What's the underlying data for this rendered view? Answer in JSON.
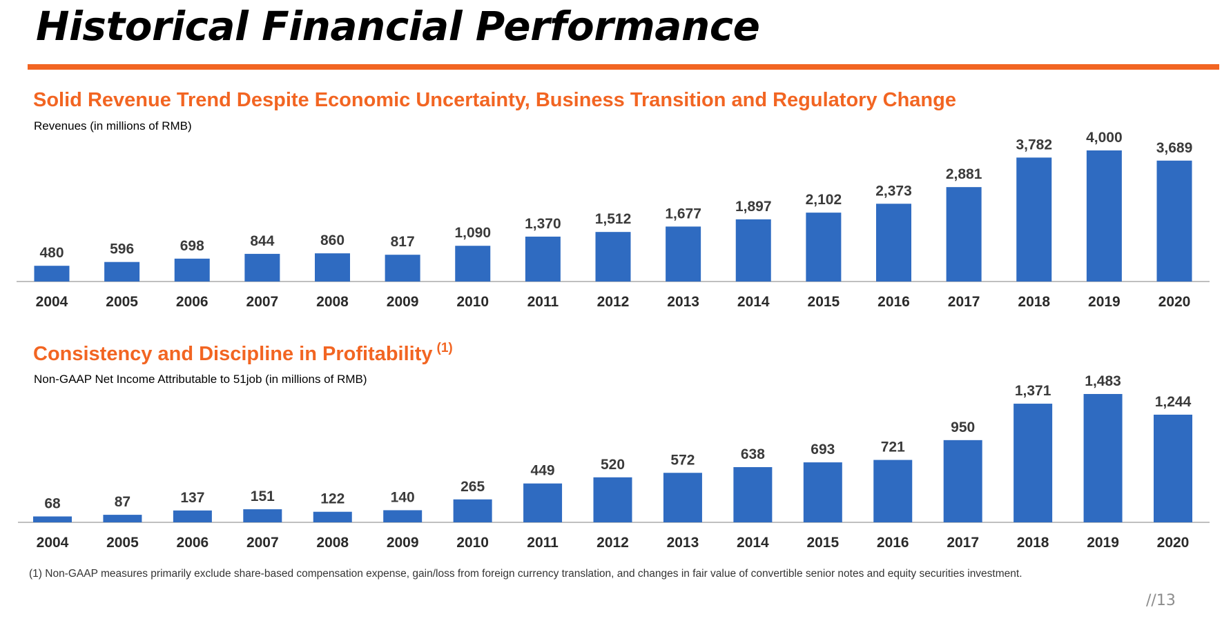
{
  "title": "Historical Financial Performance",
  "colors": {
    "accent": "#F26522",
    "bar": "#2F6BC1",
    "axis": "#bfbfbf"
  },
  "footnote": "(1)  Non-GAAP measures primarily exclude share-based compensation expense, gain/loss from foreign currency translation, and changes in fair value of convertible senior notes and equity securities investment.",
  "page_number": "//13",
  "charts": {
    "revenue": {
      "heading": "Solid Revenue Trend Despite Economic Uncertainty, Business Transition and Regulatory Change"
    },
    "net_income": {
      "heading": "Consistency and Discipline in Profitability",
      "heading_note": "(1)"
    }
  },
  "chart_data": [
    {
      "type": "bar",
      "title": "Solid Revenue Trend Despite Economic Uncertainty, Business Transition and Regulatory Change",
      "subtitle": "Revenues (in millions of RMB)",
      "xlabel": "",
      "ylabel": "",
      "categories": [
        "2004",
        "2005",
        "2006",
        "2007",
        "2008",
        "2009",
        "2010",
        "2011",
        "2012",
        "2013",
        "2014",
        "2015",
        "2016",
        "2017",
        "2018",
        "2019",
        "2020"
      ],
      "values": [
        480,
        596,
        698,
        844,
        860,
        817,
        1090,
        1370,
        1512,
        1677,
        1897,
        2102,
        2373,
        2881,
        3782,
        4000,
        3689
      ],
      "data_labels": [
        "480",
        "596",
        "698",
        "844",
        "860",
        "817",
        "1,090",
        "1,370",
        "1,512",
        "1,677",
        "1,897",
        "2,102",
        "2,373",
        "2,881",
        "3,782",
        "4,000",
        "3,689"
      ],
      "ylim": [
        0,
        4000
      ],
      "grid": false
    },
    {
      "type": "bar",
      "title": "Consistency and Discipline in Profitability",
      "subtitle": "Non-GAAP Net Income Attributable to 51job (in millions of RMB)",
      "xlabel": "",
      "ylabel": "",
      "categories": [
        "2004",
        "2005",
        "2006",
        "2007",
        "2008",
        "2009",
        "2010",
        "2011",
        "2012",
        "2013",
        "2014",
        "2015",
        "2016",
        "2017",
        "2018",
        "2019",
        "2020"
      ],
      "values": [
        68,
        87,
        137,
        151,
        122,
        140,
        265,
        449,
        520,
        572,
        638,
        693,
        721,
        950,
        1371,
        1483,
        1244
      ],
      "data_labels": [
        "68",
        "87",
        "137",
        "151",
        "122",
        "140",
        "265",
        "449",
        "520",
        "572",
        "638",
        "693",
        "721",
        "950",
        "1,371",
        "1,483",
        "1,244"
      ],
      "ylim": [
        0,
        1483
      ],
      "grid": false
    }
  ]
}
